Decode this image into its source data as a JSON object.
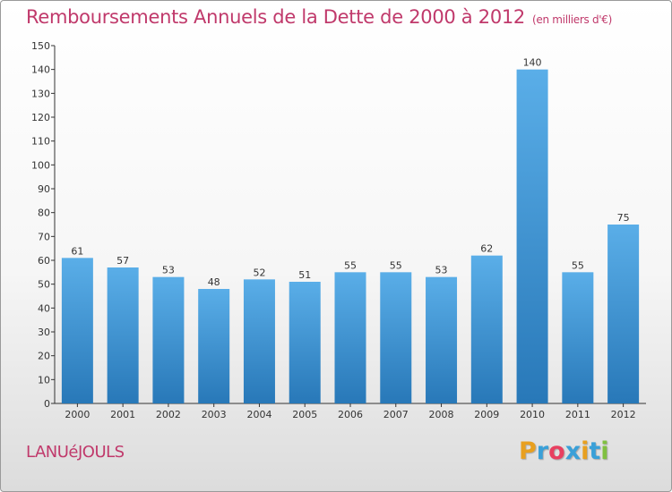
{
  "chart_data": {
    "type": "bar",
    "title": "Remboursements Annuels de la Dette de 2000 à 2012",
    "unit": "(en milliers d'€)",
    "categories": [
      "2000",
      "2001",
      "2002",
      "2003",
      "2004",
      "2005",
      "2006",
      "2007",
      "2008",
      "2009",
      "2010",
      "2011",
      "2012"
    ],
    "values": [
      61,
      57,
      53,
      48,
      52,
      51,
      55,
      55,
      53,
      62,
      140,
      55,
      75
    ],
    "ylim": [
      0,
      150
    ],
    "yticks": [
      0,
      10,
      20,
      30,
      40,
      50,
      60,
      70,
      80,
      90,
      100,
      110,
      120,
      130,
      140,
      150
    ],
    "grid": false,
    "bar_color_top": "#5aaee8",
    "bar_color_bottom": "#2878b8"
  },
  "commune": "LANUéJOULS",
  "brand": {
    "letters": [
      "P",
      "r",
      "o",
      "x",
      "i",
      "t",
      "i"
    ],
    "colors": [
      "#e8a020",
      "#3aa0d8",
      "#e84060",
      "#3aa0d8",
      "#e8a020",
      "#3aa0d8",
      "#80c040"
    ]
  },
  "colors": {
    "accent": "#c0396b",
    "axis": "#333333"
  }
}
